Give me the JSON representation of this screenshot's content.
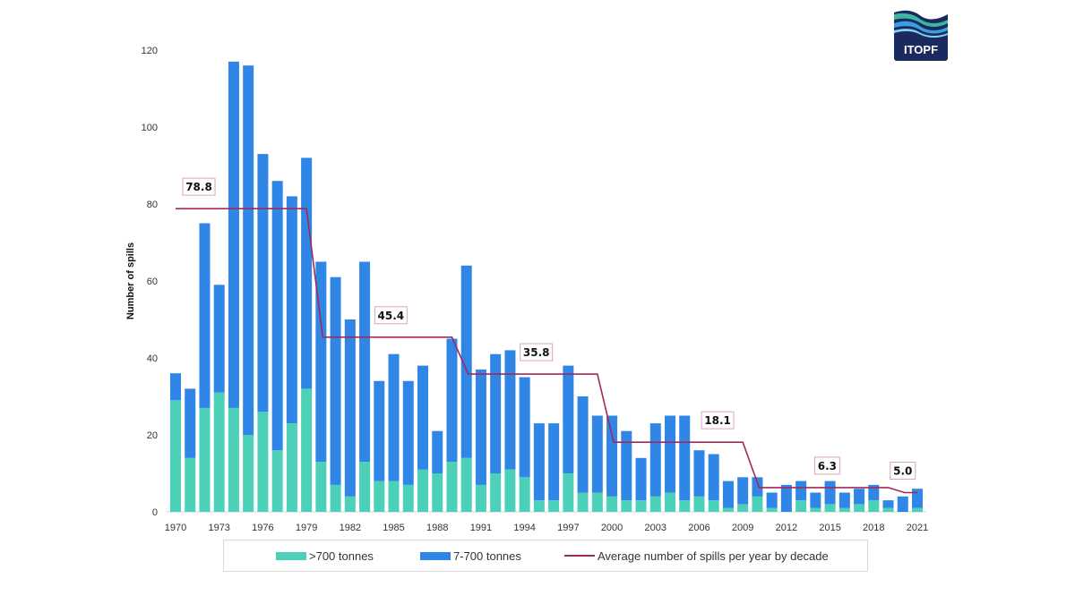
{
  "logo": {
    "text": "ITOPF"
  },
  "chart_data": {
    "type": "bar",
    "stacked": true,
    "title": "",
    "xlabel": "",
    "ylabel": "Number of spills",
    "ylim": [
      0,
      120
    ],
    "yticks": [
      0,
      20,
      40,
      60,
      80,
      100,
      120
    ],
    "grid": false,
    "legend_position": "bottom",
    "categories": [
      1970,
      1971,
      1972,
      1973,
      1974,
      1975,
      1976,
      1977,
      1978,
      1979,
      1980,
      1981,
      1982,
      1983,
      1984,
      1985,
      1986,
      1987,
      1988,
      1989,
      1990,
      1991,
      1992,
      1993,
      1994,
      1995,
      1996,
      1997,
      1998,
      1999,
      2000,
      2001,
      2002,
      2003,
      2004,
      2005,
      2006,
      2007,
      2008,
      2009,
      2010,
      2011,
      2012,
      2013,
      2014,
      2015,
      2016,
      2017,
      2018,
      2019,
      2020,
      2021
    ],
    "xtick_labels": [
      "1970",
      "1973",
      "1976",
      "1979",
      "1982",
      "1985",
      "1988",
      "1991",
      "1994",
      "1997",
      "2000",
      "2003",
      "2006",
      "2009",
      "2012",
      "2015",
      "2018",
      "2021"
    ],
    "series": [
      {
        "name": ">700 tonnes",
        "color": "#4dd0b8",
        "values": [
          29,
          14,
          27,
          31,
          27,
          20,
          26,
          16,
          23,
          32,
          13,
          7,
          4,
          13,
          8,
          8,
          7,
          11,
          10,
          13,
          14,
          7,
          10,
          11,
          9,
          3,
          3,
          10,
          5,
          5,
          4,
          3,
          3,
          4,
          5,
          3,
          4,
          3,
          1,
          2,
          4,
          1,
          0,
          3,
          1,
          2,
          1,
          2,
          3,
          1,
          0,
          1
        ]
      },
      {
        "name": "7-700 tonnes",
        "color": "#2f86e6",
        "values": [
          7,
          18,
          48,
          28,
          90,
          96,
          67,
          70,
          59,
          60,
          52,
          54,
          46,
          52,
          26,
          33,
          27,
          27,
          11,
          32,
          50,
          30,
          31,
          31,
          26,
          20,
          20,
          28,
          25,
          20,
          21,
          18,
          11,
          19,
          20,
          22,
          12,
          12,
          7,
          7,
          5,
          4,
          7,
          5,
          4,
          6,
          4,
          4,
          4,
          2,
          4,
          5
        ]
      }
    ],
    "average_line": {
      "name": "Average number of spills per year by decade",
      "color": "#a3285a",
      "segments": [
        {
          "from": 1970,
          "to": 1979,
          "value": 78.8,
          "label": "78.8"
        },
        {
          "from": 1980,
          "to": 1989,
          "value": 45.4,
          "label": "45.4"
        },
        {
          "from": 1990,
          "to": 1999,
          "value": 35.8,
          "label": "35.8"
        },
        {
          "from": 2000,
          "to": 2009,
          "value": 18.1,
          "label": "18.1"
        },
        {
          "from": 2010,
          "to": 2019,
          "value": 6.3,
          "label": "6.3"
        },
        {
          "from": 2020,
          "to": 2021,
          "value": 5.0,
          "label": "5.0"
        }
      ]
    }
  }
}
